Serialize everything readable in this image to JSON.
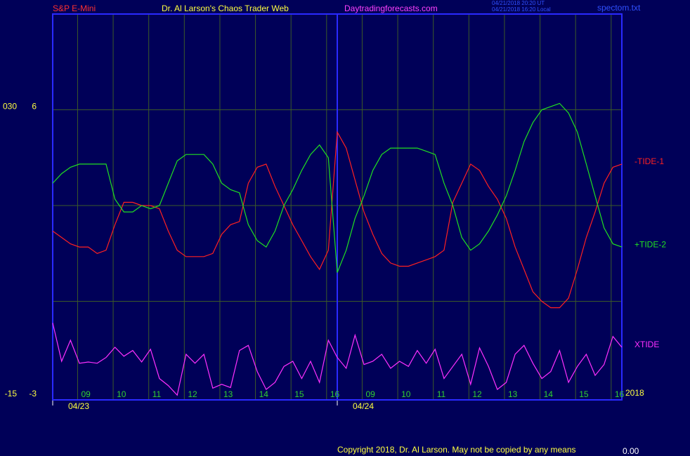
{
  "header": {
    "symbol": "S&P E-Mini",
    "site": "Dr. Al Larson's Chaos Trader Web",
    "url": "Daytradingforecasts.com",
    "stamp_ut": "04/21/2018 20:20 UT",
    "stamp_local": "04/21/2018 16:20 Local",
    "file": "spectom.txt"
  },
  "footer": {
    "copyright": "Copyright 2018, Dr. Al Larson. May not be copied by any means",
    "number": "0.00"
  },
  "chart_data": {
    "type": "line",
    "xlim": [
      0,
      16
    ],
    "xticks": [
      {
        "value": 0.7,
        "label": "09"
      },
      {
        "value": 1.7,
        "label": "10"
      },
      {
        "value": 2.7,
        "label": "11"
      },
      {
        "value": 3.7,
        "label": "12"
      },
      {
        "value": 4.7,
        "label": "13"
      },
      {
        "value": 5.7,
        "label": "14"
      },
      {
        "value": 6.7,
        "label": "15"
      },
      {
        "value": 7.7,
        "label": "16"
      },
      {
        "value": 8.7,
        "label": "09"
      },
      {
        "value": 9.7,
        "label": "10"
      },
      {
        "value": 10.7,
        "label": "11"
      },
      {
        "value": 11.7,
        "label": "12"
      },
      {
        "value": 12.7,
        "label": "13"
      },
      {
        "value": 13.7,
        "label": "14"
      },
      {
        "value": 14.7,
        "label": "15"
      },
      {
        "value": 15.7,
        "label": "16"
      }
    ],
    "date_ticks": [
      {
        "value": 0,
        "label": "04/23"
      },
      {
        "value": 8,
        "label": "04/24"
      }
    ],
    "year": "2018",
    "ylim": [
      -3,
      9
    ],
    "yticks": [
      6,
      -3
    ],
    "ygrid": [
      6,
      3,
      0
    ],
    "y2lim": [
      -15,
      45
    ],
    "y2ticks": [
      {
        "value": 30,
        "label": "030"
      },
      -15
    ],
    "grid": true,
    "x": [
      0,
      0.25,
      0.5,
      0.75,
      1,
      1.25,
      1.5,
      1.75,
      2,
      2.25,
      2.5,
      2.75,
      3,
      3.25,
      3.5,
      3.75,
      4,
      4.25,
      4.5,
      4.75,
      5,
      5.25,
      5.5,
      5.75,
      6,
      6.25,
      6.5,
      6.75,
      7,
      7.25,
      7.5,
      7.75,
      8,
      8.25,
      8.5,
      8.75,
      9,
      9.25,
      9.5,
      9.75,
      10,
      10.25,
      10.5,
      10.75,
      11,
      11.25,
      11.5,
      11.75,
      12,
      12.25,
      12.5,
      12.75,
      13,
      13.25,
      13.5,
      13.75,
      14,
      14.25,
      14.5,
      14.75,
      15,
      15.25,
      15.5,
      15.75,
      16
    ],
    "series": [
      {
        "name": "-TIDE-1",
        "color": "#ff2020",
        "values": [
          2.2,
          2.0,
          1.8,
          1.7,
          1.7,
          1.5,
          1.6,
          2.4,
          3.1,
          3.1,
          3.0,
          3.0,
          2.9,
          2.2,
          1.6,
          1.4,
          1.4,
          1.4,
          1.5,
          2.1,
          2.4,
          2.5,
          3.7,
          4.2,
          4.3,
          3.6,
          3.0,
          2.4,
          1.9,
          1.4,
          1.0,
          1.6,
          5.3,
          4.8,
          3.8,
          2.8,
          2.1,
          1.5,
          1.2,
          1.1,
          1.1,
          1.2,
          1.3,
          1.4,
          1.6,
          3.1,
          3.7,
          4.3,
          4.1,
          3.6,
          3.2,
          2.6,
          1.7,
          1.0,
          0.3,
          0.0,
          -0.2,
          -0.2,
          0.1,
          1.0,
          2.0,
          2.8,
          3.7,
          4.2,
          4.3
        ]
      },
      {
        "name": "+TIDE-2",
        "color": "#20e020",
        "values": [
          3.7,
          4.0,
          4.2,
          4.3,
          4.3,
          4.3,
          4.3,
          3.2,
          2.8,
          2.8,
          3.0,
          2.9,
          3.0,
          3.7,
          4.4,
          4.6,
          4.6,
          4.6,
          4.3,
          3.7,
          3.5,
          3.4,
          2.4,
          1.9,
          1.7,
          2.2,
          3.0,
          3.5,
          4.1,
          4.6,
          4.9,
          4.5,
          0.9,
          1.6,
          2.6,
          3.3,
          4.1,
          4.6,
          4.8,
          4.8,
          4.8,
          4.8,
          4.7,
          4.6,
          3.7,
          3.0,
          2.0,
          1.6,
          1.8,
          2.2,
          2.7,
          3.3,
          4.1,
          5.0,
          5.6,
          6.0,
          6.1,
          6.2,
          5.9,
          5.3,
          4.3,
          3.3,
          2.3,
          1.8,
          1.7
        ]
      },
      {
        "name": "XTIDE",
        "color": "#ff30ff",
        "axis": "y2",
        "values": [
          -3.4,
          -9.4,
          -6.1,
          -9.7,
          -9.5,
          -9.7,
          -8.8,
          -7.2,
          -8.6,
          -7.7,
          -9.5,
          -7.5,
          -12.1,
          -13.2,
          -14.7,
          -8.3,
          -9.7,
          -8.3,
          -13.6,
          -13.0,
          -13.5,
          -7.7,
          -6.9,
          -11.0,
          -13.8,
          -12.7,
          -10.2,
          -9.4,
          -12.1,
          -9.4,
          -12.7,
          -6.1,
          -8.8,
          -10.5,
          -5.3,
          -9.9,
          -9.4,
          -8.3,
          -10.5,
          -9.4,
          -10.2,
          -7.7,
          -9.7,
          -7.5,
          -12.1,
          -10.2,
          -8.3,
          -13.0,
          -7.3,
          -10.2,
          -13.8,
          -12.7,
          -8.3,
          -6.9,
          -9.7,
          -12.1,
          -11.0,
          -7.7,
          -12.7,
          -10.2,
          -8.3,
          -11.6,
          -9.9,
          -5.5,
          -7.2
        ]
      }
    ]
  }
}
